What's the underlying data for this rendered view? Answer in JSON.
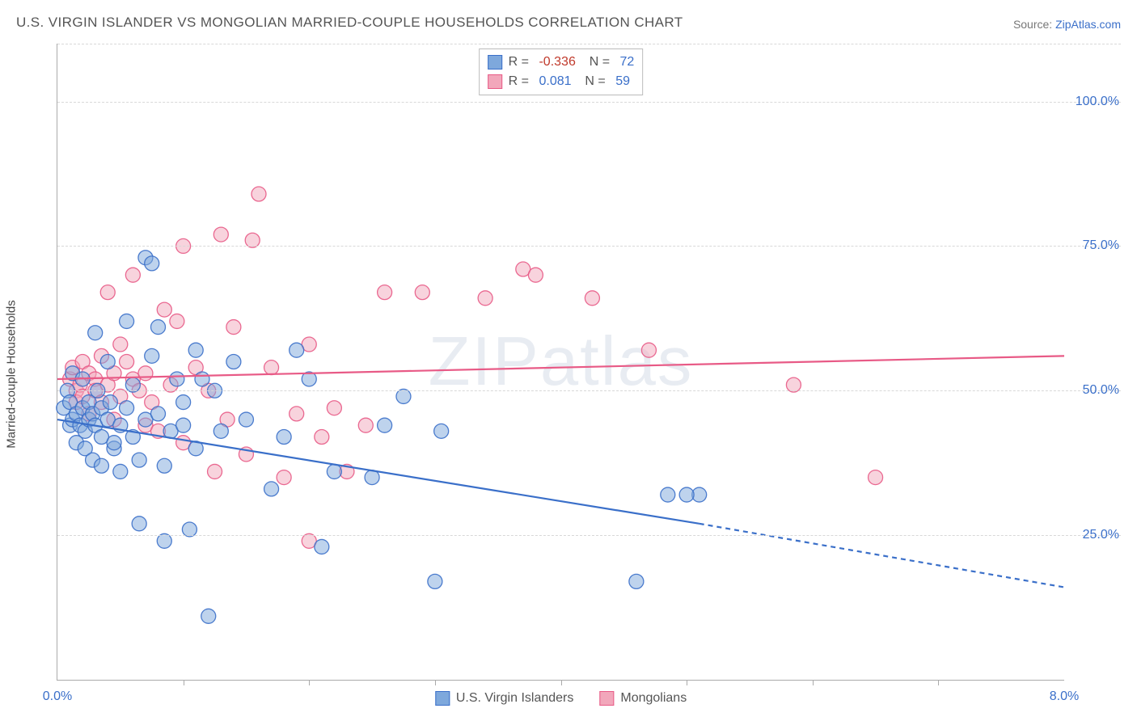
{
  "header": {
    "title": "U.S. VIRGIN ISLANDER VS MONGOLIAN MARRIED-COUPLE HOUSEHOLDS CORRELATION CHART",
    "source_prefix": "Source: ",
    "source_link": "ZipAtlas.com"
  },
  "chart": {
    "type": "scatter-regression",
    "ylabel": "Married-couple Households",
    "background_color": "#ffffff",
    "grid_color": "#d8d8d8",
    "axis_color": "#aaaaaa",
    "text_color": "#555555",
    "tick_label_color": "#3a6fc9",
    "label_fontsize": 15,
    "tick_fontsize": 16,
    "xlim": [
      0,
      8
    ],
    "ylim": [
      0,
      110
    ],
    "x_ticks": [
      1,
      2,
      3,
      4,
      5,
      6,
      7
    ],
    "x_tick_labels": [
      0.0,
      8.0
    ],
    "x_tick_label_positions": [
      0,
      8
    ],
    "y_gridlines": [
      25,
      50,
      75,
      100,
      110
    ],
    "y_tick_labels": [
      "25.0%",
      "50.0%",
      "75.0%",
      "100.0%"
    ],
    "y_tick_positions": [
      25,
      50,
      75,
      100
    ],
    "watermark": "ZIPatlas",
    "marker_radius": 9,
    "marker_opacity": 0.5,
    "marker_stroke_opacity": 0.9,
    "line_width": 2.2,
    "dash_pattern": "6 5",
    "series_a": {
      "name": "U.S. Virgin Islanders",
      "fill_color": "#7ea8dc",
      "stroke_color": "#3a6fc9",
      "R": "-0.336",
      "R_color": "#c0392b",
      "N": "72",
      "regression_solid": {
        "x1": 0,
        "y1": 45,
        "x2": 5.1,
        "y2": 27
      },
      "regression_dashed": {
        "x1": 5.1,
        "y1": 27,
        "x2": 8.0,
        "y2": 16
      },
      "points": [
        [
          0.05,
          47
        ],
        [
          0.08,
          50
        ],
        [
          0.1,
          44
        ],
        [
          0.1,
          48
        ],
        [
          0.12,
          45
        ],
        [
          0.12,
          53
        ],
        [
          0.15,
          46
        ],
        [
          0.15,
          41
        ],
        [
          0.18,
          44
        ],
        [
          0.2,
          47
        ],
        [
          0.2,
          52
        ],
        [
          0.22,
          43
        ],
        [
          0.22,
          40
        ],
        [
          0.25,
          48
        ],
        [
          0.25,
          45
        ],
        [
          0.28,
          46
        ],
        [
          0.28,
          38
        ],
        [
          0.3,
          60
        ],
        [
          0.3,
          44
        ],
        [
          0.32,
          50
        ],
        [
          0.35,
          47
        ],
        [
          0.35,
          42
        ],
        [
          0.35,
          37
        ],
        [
          0.4,
          45
        ],
        [
          0.4,
          55
        ],
        [
          0.42,
          48
        ],
        [
          0.45,
          40
        ],
        [
          0.45,
          41
        ],
        [
          0.5,
          44
        ],
        [
          0.5,
          36
        ],
        [
          0.55,
          62
        ],
        [
          0.55,
          47
        ],
        [
          0.6,
          51
        ],
        [
          0.6,
          42
        ],
        [
          0.65,
          38
        ],
        [
          0.65,
          27
        ],
        [
          0.7,
          45
        ],
        [
          0.7,
          73
        ],
        [
          0.75,
          56
        ],
        [
          0.75,
          72
        ],
        [
          0.8,
          61
        ],
        [
          0.8,
          46
        ],
        [
          0.85,
          37
        ],
        [
          0.85,
          24
        ],
        [
          0.9,
          43
        ],
        [
          0.95,
          52
        ],
        [
          1.0,
          48
        ],
        [
          1.0,
          44
        ],
        [
          1.05,
          26
        ],
        [
          1.1,
          57
        ],
        [
          1.1,
          40
        ],
        [
          1.15,
          52
        ],
        [
          1.2,
          11
        ],
        [
          1.25,
          50
        ],
        [
          1.3,
          43
        ],
        [
          1.4,
          55
        ],
        [
          1.5,
          45
        ],
        [
          1.7,
          33
        ],
        [
          1.8,
          42
        ],
        [
          1.9,
          57
        ],
        [
          2.0,
          52
        ],
        [
          2.1,
          23
        ],
        [
          2.2,
          36
        ],
        [
          2.5,
          35
        ],
        [
          2.6,
          44
        ],
        [
          2.75,
          49
        ],
        [
          3.0,
          17
        ],
        [
          3.05,
          43
        ],
        [
          4.6,
          17
        ],
        [
          4.85,
          32
        ],
        [
          5.1,
          32
        ],
        [
          5.0,
          32
        ]
      ]
    },
    "series_b": {
      "name": "Mongolians",
      "fill_color": "#f2a7bb",
      "stroke_color": "#e85a86",
      "R": "0.081",
      "R_color": "#3a6fc9",
      "N": "59",
      "regression_solid": {
        "x1": 0,
        "y1": 52,
        "x2": 8.0,
        "y2": 56
      },
      "points": [
        [
          0.1,
          52
        ],
        [
          0.12,
          54
        ],
        [
          0.15,
          50
        ],
        [
          0.15,
          48
        ],
        [
          0.18,
          51
        ],
        [
          0.2,
          55
        ],
        [
          0.2,
          49
        ],
        [
          0.25,
          53
        ],
        [
          0.25,
          46
        ],
        [
          0.3,
          52
        ],
        [
          0.3,
          50
        ],
        [
          0.35,
          56
        ],
        [
          0.35,
          48
        ],
        [
          0.4,
          51
        ],
        [
          0.4,
          67
        ],
        [
          0.45,
          53
        ],
        [
          0.45,
          45
        ],
        [
          0.5,
          49
        ],
        [
          0.5,
          58
        ],
        [
          0.55,
          55
        ],
        [
          0.6,
          52
        ],
        [
          0.6,
          70
        ],
        [
          0.65,
          50
        ],
        [
          0.7,
          53
        ],
        [
          0.7,
          44
        ],
        [
          0.75,
          48
        ],
        [
          0.8,
          43
        ],
        [
          0.85,
          64
        ],
        [
          0.9,
          51
        ],
        [
          0.95,
          62
        ],
        [
          1.0,
          41
        ],
        [
          1.0,
          75
        ],
        [
          1.1,
          54
        ],
        [
          1.2,
          50
        ],
        [
          1.25,
          36
        ],
        [
          1.3,
          77
        ],
        [
          1.35,
          45
        ],
        [
          1.4,
          61
        ],
        [
          1.5,
          39
        ],
        [
          1.55,
          76
        ],
        [
          1.6,
          84
        ],
        [
          1.7,
          54
        ],
        [
          1.8,
          35
        ],
        [
          1.9,
          46
        ],
        [
          2.0,
          58
        ],
        [
          2.0,
          24
        ],
        [
          2.1,
          42
        ],
        [
          2.2,
          47
        ],
        [
          2.3,
          36
        ],
        [
          2.45,
          44
        ],
        [
          2.6,
          67
        ],
        [
          2.9,
          67
        ],
        [
          3.4,
          66
        ],
        [
          3.7,
          71
        ],
        [
          3.8,
          70
        ],
        [
          4.25,
          66
        ],
        [
          4.7,
          57
        ],
        [
          5.85,
          51
        ],
        [
          6.5,
          35
        ]
      ]
    }
  },
  "legend_bottom": {
    "a": "U.S. Virgin Islanders",
    "b": "Mongolians"
  }
}
